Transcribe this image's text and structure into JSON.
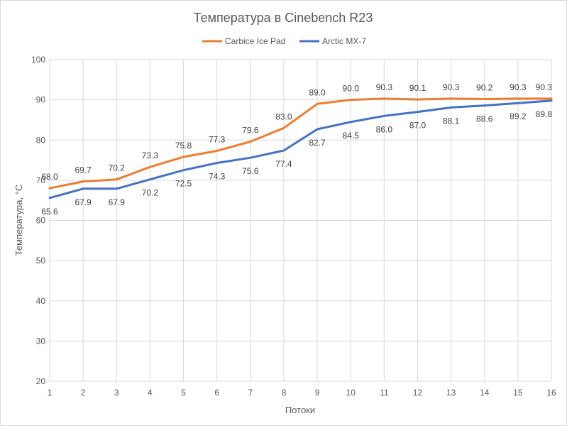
{
  "chart_data": {
    "type": "line",
    "title": "Температура в Cinebench R23",
    "xlabel": "Потоки",
    "ylabel": "Температура, °C",
    "x": [
      1,
      2,
      3,
      4,
      5,
      6,
      7,
      8,
      9,
      10,
      11,
      12,
      13,
      14,
      15,
      16
    ],
    "ylim": [
      20,
      100
    ],
    "yticks": [
      20,
      30,
      40,
      50,
      60,
      70,
      80,
      90,
      100
    ],
    "grid": true,
    "legend_position": "top",
    "series": [
      {
        "name": "Carbice Ice Pad",
        "color": "#ED7D31",
        "values": [
          68.0,
          69.7,
          70.2,
          73.3,
          75.8,
          77.3,
          79.6,
          83.0,
          89.0,
          90.0,
          90.3,
          90.1,
          90.3,
          90.2,
          90.3,
          90.3
        ],
        "labels": [
          "68.0",
          "69.7",
          "70.2",
          "73.3",
          "75.8",
          "77.3",
          "79.6",
          "83.0",
          "89.0",
          "90.0",
          "90.3",
          "90.1",
          "90.3",
          "90.2",
          "90.3",
          "90.3"
        ]
      },
      {
        "name": "Arctic MX-7",
        "color": "#4472C4",
        "values": [
          65.6,
          67.9,
          67.9,
          70.2,
          72.5,
          74.3,
          75.6,
          77.4,
          82.7,
          84.5,
          86.0,
          87.0,
          88.1,
          88.6,
          89.2,
          89.8
        ],
        "labels": [
          "65.6",
          "67.9",
          "67.9",
          "70.2",
          "72.5",
          "74.3",
          "75.6",
          "77.4",
          "82.7",
          "84.5",
          "86.0",
          "87.0",
          "88.1",
          "88.6",
          "89.2",
          "89.8"
        ]
      }
    ]
  }
}
